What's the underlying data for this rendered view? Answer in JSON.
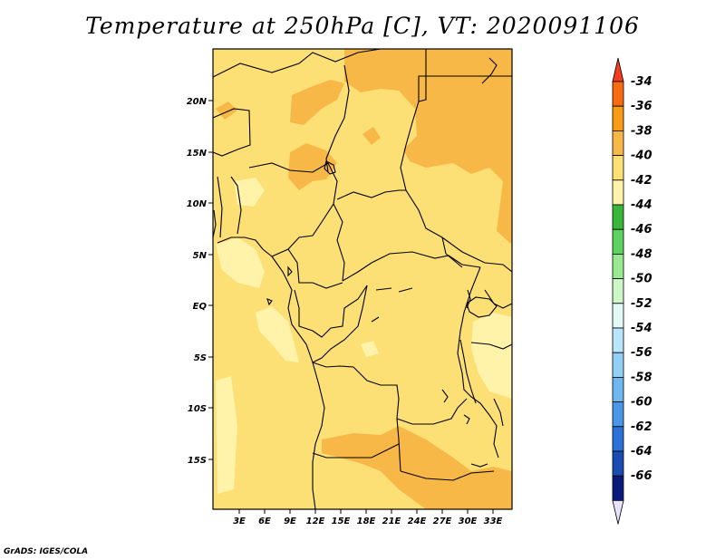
{
  "title": "Temperature at 250hPa [C], VT: 2020091106",
  "credit": "GrADS: IGES/COLA",
  "map": {
    "lat_axis_labels": [
      "20N",
      "15N",
      "10N",
      "5N",
      "EQ",
      "5S",
      "10S",
      "15S"
    ],
    "lon_axis_labels": [
      "3E",
      "6E",
      "9E",
      "12E",
      "15E",
      "18E",
      "21E",
      "24E",
      "27E",
      "30E",
      "33E"
    ],
    "colors": {
      "background_fill": "#fcdf75",
      "warm_patch": "#f8b847",
      "cool_patch": "#fef3a8",
      "border": "#000000"
    }
  },
  "colorbar": {
    "labels": [
      "-34",
      "-36",
      "-38",
      "-40",
      "-42",
      "-44",
      "-46",
      "-48",
      "-50",
      "-52",
      "-54",
      "-56",
      "-58",
      "-60",
      "-62",
      "-64",
      "-66"
    ],
    "top_color": "#f43c1c",
    "bottom_color": "#e8e2fa",
    "colors": [
      "#f86a10",
      "#f89c16",
      "#f8b847",
      "#fcdf75",
      "#fef3a8",
      "#3ab63a",
      "#5ed25e",
      "#98ea90",
      "#cdf7c7",
      "#e2f9f6",
      "#b9e6fa",
      "#93d0f6",
      "#6fb7ef",
      "#4a96e8",
      "#2d70d7",
      "#1a4cb3",
      "#0a1a7a"
    ]
  }
}
